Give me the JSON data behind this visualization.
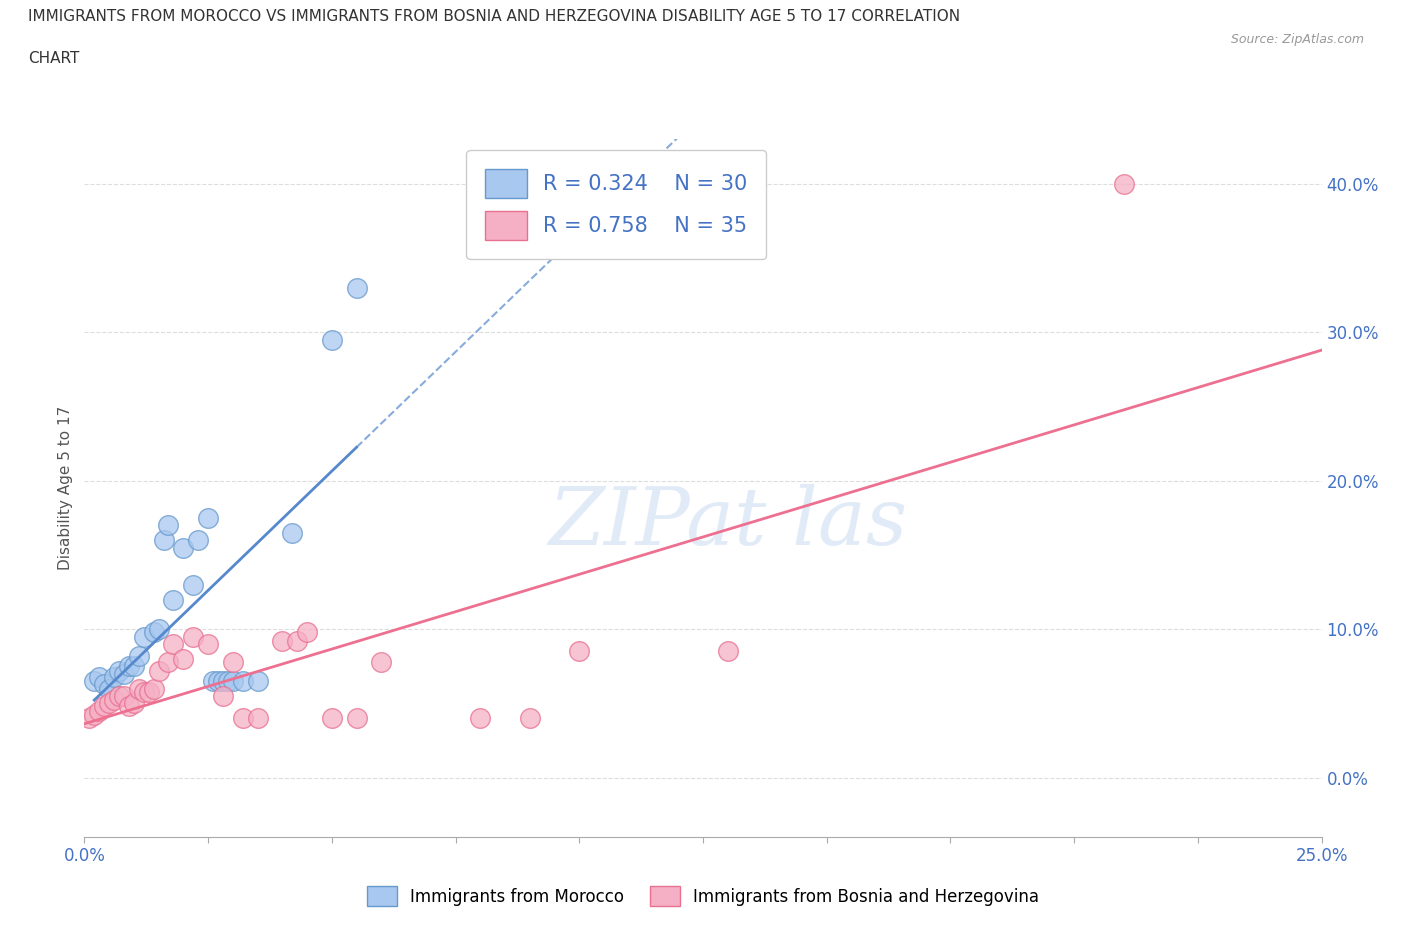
{
  "title_line1": "IMMIGRANTS FROM MOROCCO VS IMMIGRANTS FROM BOSNIA AND HERZEGOVINA DISABILITY AGE 5 TO 17 CORRELATION",
  "title_line2": "CHART",
  "source": "Source: ZipAtlas.com",
  "ylabel": "Disability Age 5 to 17",
  "watermark": "ZIPat las",
  "R_morocco": 0.324,
  "N_morocco": 30,
  "R_bosnia": 0.758,
  "N_bosnia": 35,
  "xlim": [
    0.0,
    0.25
  ],
  "ylim": [
    -0.04,
    0.43
  ],
  "x_only_ticks": [
    0.0,
    0.025,
    0.05,
    0.075,
    0.1,
    0.125,
    0.15,
    0.175,
    0.2,
    0.225,
    0.25
  ],
  "x_label_ticks": [
    0.0,
    0.25
  ],
  "yticks": [
    0.0,
    0.1,
    0.2,
    0.3,
    0.4
  ],
  "morocco_color": "#A8C8F0",
  "bosnia_color": "#F5B0C5",
  "morocco_edge_color": "#6699CC",
  "bosnia_edge_color": "#E87090",
  "morocco_line_color": "#5588CC",
  "bosnia_line_color": "#EE7090",
  "morocco_x": [
    0.002,
    0.003,
    0.004,
    0.005,
    0.006,
    0.007,
    0.008,
    0.009,
    0.01,
    0.011,
    0.012,
    0.014,
    0.015,
    0.016,
    0.017,
    0.018,
    0.02,
    0.022,
    0.023,
    0.025,
    0.026,
    0.027,
    0.028,
    0.029,
    0.03,
    0.032,
    0.035,
    0.042,
    0.05,
    0.055
  ],
  "morocco_y": [
    0.065,
    0.068,
    0.063,
    0.06,
    0.068,
    0.072,
    0.07,
    0.075,
    0.075,
    0.082,
    0.095,
    0.098,
    0.1,
    0.16,
    0.17,
    0.12,
    0.155,
    0.13,
    0.16,
    0.175,
    0.065,
    0.065,
    0.065,
    0.065,
    0.065,
    0.065,
    0.065,
    0.165,
    0.295,
    0.33
  ],
  "bosnia_x": [
    0.001,
    0.002,
    0.003,
    0.004,
    0.005,
    0.006,
    0.007,
    0.008,
    0.009,
    0.01,
    0.011,
    0.012,
    0.013,
    0.014,
    0.015,
    0.017,
    0.018,
    0.02,
    0.022,
    0.025,
    0.028,
    0.03,
    0.032,
    0.035,
    0.04,
    0.043,
    0.045,
    0.05,
    0.055,
    0.06,
    0.08,
    0.09,
    0.1,
    0.13,
    0.21
  ],
  "bosnia_y": [
    0.04,
    0.042,
    0.045,
    0.048,
    0.05,
    0.052,
    0.055,
    0.055,
    0.048,
    0.05,
    0.06,
    0.058,
    0.058,
    0.06,
    0.072,
    0.078,
    0.09,
    0.08,
    0.095,
    0.09,
    0.055,
    0.078,
    0.04,
    0.04,
    0.092,
    0.092,
    0.098,
    0.04,
    0.04,
    0.078,
    0.04,
    0.04,
    0.085,
    0.085,
    0.4
  ],
  "legend_label_morocco": "Immigrants from Morocco",
  "legend_label_bosnia": "Immigrants from Bosnia and Herzegovina",
  "bg_color": "#FFFFFF",
  "grid_color": "#DDDDDD"
}
